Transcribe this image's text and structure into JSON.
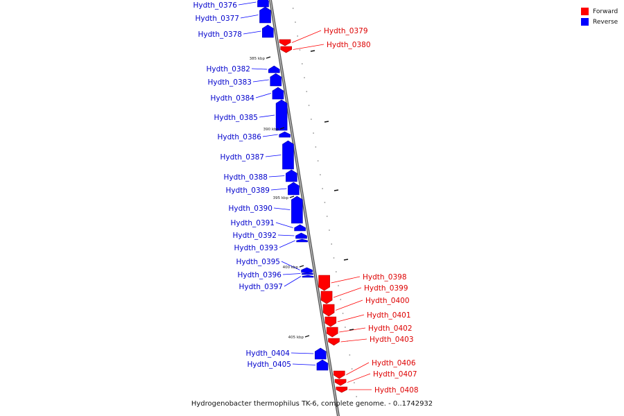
{
  "title": "Hydrogenobacter thermophilus TK-6, complete genome. - 0..1742932",
  "colors": {
    "forward": "#ff0000",
    "reverse": "#0000ff",
    "label_forward": "#dd0000",
    "label_reverse": "#0000cc",
    "backbone": "#888888"
  },
  "legend": [
    {
      "label": "Forward",
      "color": "#ff0000"
    },
    {
      "label": "Reverse",
      "color": "#0000ff"
    }
  ],
  "scale_ticks": [
    "385 kbp",
    "390 kbp",
    "395 kbp",
    "400 kbp",
    "405 kbp"
  ],
  "genes": [
    {
      "name": "Hydth_0376",
      "strand": "reverse"
    },
    {
      "name": "Hydth_0377",
      "strand": "reverse"
    },
    {
      "name": "Hydth_0378",
      "strand": "reverse"
    },
    {
      "name": "Hydth_0379",
      "strand": "forward"
    },
    {
      "name": "Hydth_0380",
      "strand": "forward"
    },
    {
      "name": "Hydth_0382",
      "strand": "reverse"
    },
    {
      "name": "Hydth_0383",
      "strand": "reverse"
    },
    {
      "name": "Hydth_0384",
      "strand": "reverse"
    },
    {
      "name": "Hydth_0385",
      "strand": "reverse"
    },
    {
      "name": "Hydth_0386",
      "strand": "reverse"
    },
    {
      "name": "Hydth_0387",
      "strand": "reverse"
    },
    {
      "name": "Hydth_0388",
      "strand": "reverse"
    },
    {
      "name": "Hydth_0389",
      "strand": "reverse"
    },
    {
      "name": "Hydth_0390",
      "strand": "reverse"
    },
    {
      "name": "Hydth_0391",
      "strand": "reverse"
    },
    {
      "name": "Hydth_0392",
      "strand": "reverse"
    },
    {
      "name": "Hydth_0393",
      "strand": "reverse"
    },
    {
      "name": "Hydth_0395",
      "strand": "reverse"
    },
    {
      "name": "Hydth_0396",
      "strand": "reverse"
    },
    {
      "name": "Hydth_0397",
      "strand": "reverse"
    },
    {
      "name": "Hydth_0398",
      "strand": "forward"
    },
    {
      "name": "Hydth_0399",
      "strand": "forward"
    },
    {
      "name": "Hydth_0400",
      "strand": "forward"
    },
    {
      "name": "Hydth_0401",
      "strand": "forward"
    },
    {
      "name": "Hydth_0402",
      "strand": "forward"
    },
    {
      "name": "Hydth_0403",
      "strand": "forward"
    },
    {
      "name": "Hydth_0404",
      "strand": "reverse"
    },
    {
      "name": "Hydth_0405",
      "strand": "reverse"
    },
    {
      "name": "Hydth_0406",
      "strand": "forward"
    },
    {
      "name": "Hydth_0407",
      "strand": "forward"
    },
    {
      "name": "Hydth_0408",
      "strand": "forward"
    }
  ]
}
